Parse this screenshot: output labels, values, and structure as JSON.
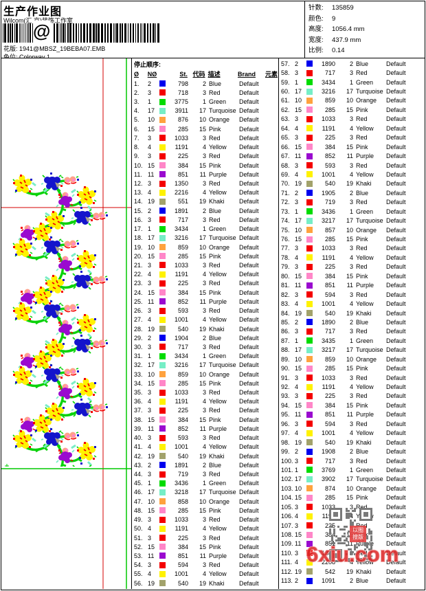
{
  "header": {
    "title": "生产作业图",
    "studio": "Wilcom(汇 京)装饰工作室",
    "design_label": "花版:",
    "design_value": "1941@MBSZ_19BEBA07.EMB",
    "colorway_label": "色位:",
    "colorway_value": "Colorway 1",
    "barcode_at": "@"
  },
  "info_panel": {
    "rows": [
      {
        "label": "针数:",
        "value": "135859"
      },
      {
        "label": "颜色:",
        "value": "9"
      },
      {
        "label": "高度:",
        "value": "1056.4 mm"
      },
      {
        "label": "宽度:",
        "value": "437.9 mm"
      },
      {
        "label": "比例:",
        "value": "0.14"
      }
    ]
  },
  "stop_table": {
    "section_title": "停止顺序:",
    "headers": [
      "Ø",
      "NØ",
      "St.",
      "代码",
      "描述",
      "Brand",
      "元素"
    ],
    "brand_value": "Default",
    "left_rows": [
      [
        1,
        2,
        "blue",
        798,
        2,
        "Blue"
      ],
      [
        2,
        3,
        "red",
        718,
        3,
        "Red"
      ],
      [
        3,
        1,
        "green",
        3775,
        1,
        "Green"
      ],
      [
        4,
        17,
        "turquoise",
        3911,
        17,
        "Turquoise"
      ],
      [
        5,
        10,
        "orange",
        876,
        10,
        "Orange"
      ],
      [
        6,
        15,
        "pink",
        285,
        15,
        "Pink"
      ],
      [
        7,
        3,
        "red",
        1033,
        3,
        "Red"
      ],
      [
        8,
        4,
        "yellow",
        1191,
        4,
        "Yellow"
      ],
      [
        9,
        3,
        "red",
        225,
        3,
        "Red"
      ],
      [
        10,
        15,
        "pink",
        384,
        15,
        "Pink"
      ],
      [
        11,
        11,
        "purple",
        851,
        11,
        "Purple"
      ],
      [
        12,
        3,
        "red",
        1350,
        3,
        "Red"
      ],
      [
        13,
        4,
        "yellow",
        2216,
        4,
        "Yellow"
      ],
      [
        14,
        19,
        "khaki",
        551,
        19,
        "Khaki"
      ],
      [
        15,
        2,
        "blue",
        1891,
        2,
        "Blue"
      ],
      [
        16,
        3,
        "red",
        717,
        3,
        "Red"
      ],
      [
        17,
        1,
        "green",
        3434,
        1,
        "Green"
      ],
      [
        18,
        17,
        "turquoise",
        3216,
        17,
        "Turquoise"
      ],
      [
        19,
        10,
        "orange",
        859,
        10,
        "Orange"
      ],
      [
        20,
        15,
        "pink",
        285,
        15,
        "Pink"
      ],
      [
        21,
        3,
        "red",
        1033,
        3,
        "Red"
      ],
      [
        22,
        4,
        "yellow",
        1191,
        4,
        "Yellow"
      ],
      [
        23,
        3,
        "red",
        225,
        3,
        "Red"
      ],
      [
        24,
        15,
        "pink",
        384,
        15,
        "Pink"
      ],
      [
        25,
        11,
        "purple",
        852,
        11,
        "Purple"
      ],
      [
        26,
        3,
        "red",
        593,
        3,
        "Red"
      ],
      [
        27,
        4,
        "yellow",
        1001,
        4,
        "Yellow"
      ],
      [
        28,
        19,
        "khaki",
        540,
        19,
        "Khaki"
      ],
      [
        29,
        2,
        "blue",
        1904,
        2,
        "Blue"
      ],
      [
        30,
        3,
        "red",
        717,
        3,
        "Red"
      ],
      [
        31,
        1,
        "green",
        3434,
        1,
        "Green"
      ],
      [
        32,
        17,
        "turquoise",
        3216,
        17,
        "Turquoise"
      ],
      [
        33,
        10,
        "orange",
        859,
        10,
        "Orange"
      ],
      [
        34,
        15,
        "pink",
        285,
        15,
        "Pink"
      ],
      [
        35,
        3,
        "red",
        1033,
        3,
        "Red"
      ],
      [
        36,
        4,
        "yellow",
        1191,
        4,
        "Yellow"
      ],
      [
        37,
        3,
        "red",
        225,
        3,
        "Red"
      ],
      [
        38,
        15,
        "pink",
        384,
        15,
        "Pink"
      ],
      [
        39,
        11,
        "purple",
        852,
        11,
        "Purple"
      ],
      [
        40,
        3,
        "red",
        593,
        3,
        "Red"
      ],
      [
        41,
        4,
        "yellow",
        1001,
        4,
        "Yellow"
      ],
      [
        42,
        19,
        "khaki",
        540,
        19,
        "Khaki"
      ],
      [
        43,
        2,
        "blue",
        1891,
        2,
        "Blue"
      ],
      [
        44,
        3,
        "red",
        719,
        3,
        "Red"
      ],
      [
        45,
        1,
        "green",
        3436,
        1,
        "Green"
      ],
      [
        46,
        17,
        "turquoise",
        3218,
        17,
        "Turquoise"
      ],
      [
        47,
        10,
        "orange",
        858,
        10,
        "Orange"
      ],
      [
        48,
        15,
        "pink",
        285,
        15,
        "Pink"
      ],
      [
        49,
        3,
        "red",
        1033,
        3,
        "Red"
      ],
      [
        50,
        4,
        "yellow",
        1191,
        4,
        "Yellow"
      ],
      [
        51,
        3,
        "red",
        225,
        3,
        "Red"
      ],
      [
        52,
        15,
        "pink",
        384,
        15,
        "Pink"
      ],
      [
        53,
        11,
        "purple",
        851,
        11,
        "Purple"
      ],
      [
        54,
        3,
        "red",
        594,
        3,
        "Red"
      ],
      [
        55,
        4,
        "yellow",
        1001,
        4,
        "Yellow"
      ],
      [
        56,
        19,
        "khaki",
        540,
        19,
        "Khaki"
      ]
    ],
    "right_rows": [
      [
        57,
        2,
        "blue",
        1890,
        2,
        "Blue"
      ],
      [
        58,
        3,
        "red",
        717,
        3,
        "Red"
      ],
      [
        59,
        1,
        "green",
        3434,
        1,
        "Green"
      ],
      [
        60,
        17,
        "turquoise",
        3216,
        17,
        "Turquoise"
      ],
      [
        61,
        10,
        "orange",
        859,
        10,
        "Orange"
      ],
      [
        62,
        15,
        "pink",
        285,
        15,
        "Pink"
      ],
      [
        63,
        3,
        "red",
        1033,
        3,
        "Red"
      ],
      [
        64,
        4,
        "yellow",
        1191,
        4,
        "Yellow"
      ],
      [
        65,
        3,
        "red",
        225,
        3,
        "Red"
      ],
      [
        66,
        15,
        "pink",
        384,
        15,
        "Pink"
      ],
      [
        67,
        11,
        "purple",
        852,
        11,
        "Purple"
      ],
      [
        68,
        3,
        "red",
        593,
        3,
        "Red"
      ],
      [
        69,
        4,
        "yellow",
        1001,
        4,
        "Yellow"
      ],
      [
        70,
        19,
        "khaki",
        540,
        19,
        "Khaki"
      ],
      [
        71,
        2,
        "blue",
        1905,
        2,
        "Blue"
      ],
      [
        72,
        3,
        "red",
        719,
        3,
        "Red"
      ],
      [
        73,
        1,
        "green",
        3436,
        1,
        "Green"
      ],
      [
        74,
        17,
        "turquoise",
        3217,
        17,
        "Turquoise"
      ],
      [
        75,
        10,
        "orange",
        857,
        10,
        "Orange"
      ],
      [
        76,
        15,
        "pink",
        285,
        15,
        "Pink"
      ],
      [
        77,
        3,
        "red",
        1033,
        3,
        "Red"
      ],
      [
        78,
        4,
        "yellow",
        1191,
        4,
        "Yellow"
      ],
      [
        79,
        3,
        "red",
        225,
        3,
        "Red"
      ],
      [
        80,
        15,
        "pink",
        384,
        15,
        "Pink"
      ],
      [
        81,
        11,
        "purple",
        851,
        11,
        "Purple"
      ],
      [
        82,
        3,
        "red",
        594,
        3,
        "Red"
      ],
      [
        83,
        4,
        "yellow",
        1001,
        4,
        "Yellow"
      ],
      [
        84,
        19,
        "khaki",
        540,
        19,
        "Khaki"
      ],
      [
        85,
        2,
        "blue",
        1890,
        2,
        "Blue"
      ],
      [
        86,
        3,
        "red",
        717,
        3,
        "Red"
      ],
      [
        87,
        1,
        "green",
        3435,
        1,
        "Green"
      ],
      [
        88,
        17,
        "turquoise",
        3217,
        17,
        "Turquoise"
      ],
      [
        89,
        10,
        "orange",
        859,
        10,
        "Orange"
      ],
      [
        90,
        15,
        "pink",
        285,
        15,
        "Pink"
      ],
      [
        91,
        3,
        "red",
        1033,
        3,
        "Red"
      ],
      [
        92,
        4,
        "yellow",
        1191,
        4,
        "Yellow"
      ],
      [
        93,
        3,
        "red",
        225,
        3,
        "Red"
      ],
      [
        94,
        15,
        "pink",
        384,
        15,
        "Pink"
      ],
      [
        95,
        11,
        "purple",
        851,
        11,
        "Purple"
      ],
      [
        96,
        3,
        "red",
        594,
        3,
        "Red"
      ],
      [
        97,
        4,
        "yellow",
        1001,
        4,
        "Yellow"
      ],
      [
        98,
        19,
        "khaki",
        540,
        19,
        "Khaki"
      ],
      [
        99,
        2,
        "blue",
        1908,
        2,
        "Blue"
      ],
      [
        100,
        3,
        "red",
        717,
        3,
        "Red"
      ],
      [
        101,
        1,
        "green",
        3769,
        1,
        "Green"
      ],
      [
        102,
        17,
        "turquoise",
        3902,
        17,
        "Turquoise"
      ],
      [
        103,
        10,
        "orange",
        874,
        10,
        "Orange"
      ],
      [
        104,
        15,
        "pink",
        285,
        15,
        "Pink"
      ],
      [
        105,
        3,
        "red",
        1033,
        3,
        "Red"
      ],
      [
        106,
        4,
        "yellow",
        1191,
        4,
        "Yellow"
      ],
      [
        107,
        3,
        "red",
        225,
        3,
        "Red"
      ],
      [
        108,
        15,
        "pink",
        384,
        15,
        "Pink"
      ],
      [
        109,
        11,
        "purple",
        851,
        11,
        "Purple"
      ],
      [
        110,
        3,
        "red",
        1342,
        3,
        "Red"
      ],
      [
        111,
        4,
        "yellow",
        2208,
        4,
        "Yellow"
      ],
      [
        112,
        19,
        "khaki",
        542,
        19,
        "Khaki"
      ],
      [
        113,
        2,
        "blue",
        1091,
        2,
        "Blue"
      ]
    ]
  },
  "colors": {
    "blue": "#0000EE",
    "red": "#F40000",
    "green": "#00DC00",
    "turquoise": "#76EEC6",
    "orange": "#FFA23E",
    "pink": "#FF86C8",
    "yellow": "#FFF200",
    "purple": "#9A0ACF",
    "khaki": "#A2A26B"
  },
  "watermark": {
    "text": "6xiu.com",
    "stamp_top": "以图",
    "stamp_bottom": "搜版"
  }
}
